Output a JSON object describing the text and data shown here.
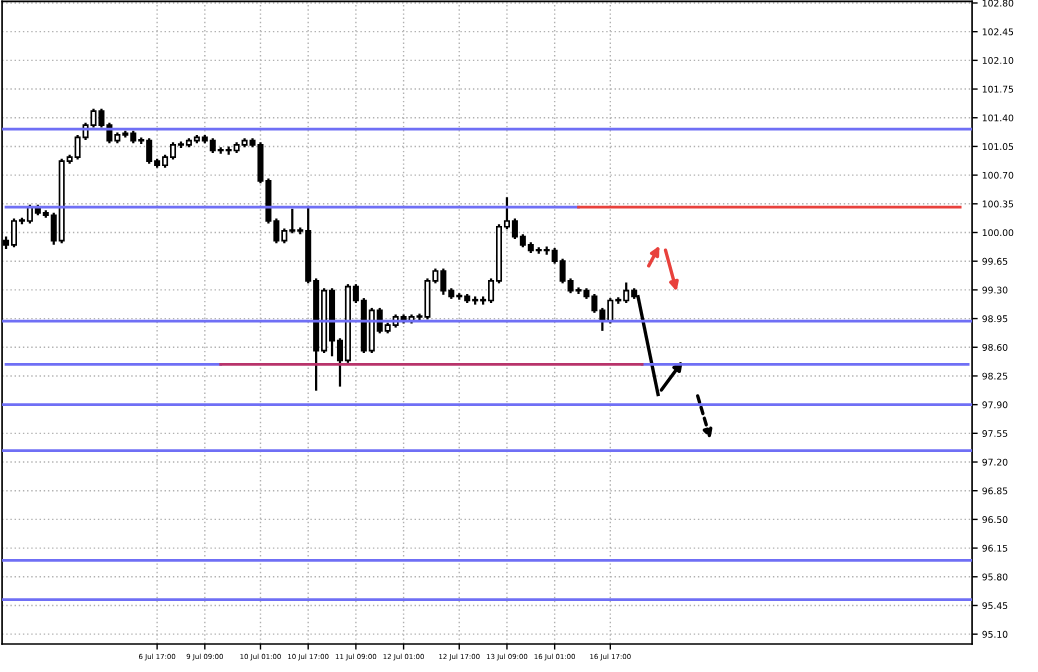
{
  "chart_data": {
    "type": "candlestick",
    "categories": [
      null,
      null,
      null,
      null,
      null,
      null,
      null,
      null,
      null,
      null,
      null,
      null,
      null,
      null,
      null,
      null,
      null,
      null,
      null,
      "6 Jul 17:00",
      null,
      null,
      null,
      null,
      null,
      "9 Jul 09:00",
      null,
      null,
      null,
      null,
      null,
      null,
      "10 Jul 01:00",
      null,
      null,
      null,
      null,
      null,
      "10 Jul 17:00",
      null,
      null,
      null,
      null,
      null,
      "11 Jul 09:00",
      null,
      null,
      null,
      null,
      null,
      "12 Jul 01:00",
      null,
      null,
      null,
      null,
      null,
      null,
      "12 Jul 17:00",
      null,
      null,
      null,
      null,
      null,
      "13 Jul 09:00",
      null,
      null,
      null,
      null,
      null,
      "16 Jul 01:00",
      null,
      null,
      null,
      null,
      null,
      null,
      "16 Jul 17:00",
      null,
      null,
      null,
      null,
      null,
      null,
      null,
      null,
      null,
      null,
      null,
      null,
      null,
      null,
      null,
      null,
      null,
      null,
      null,
      null,
      null,
      null,
      null,
      null,
      null,
      null,
      null,
      null,
      null,
      null,
      null,
      null,
      null,
      null,
      null,
      null,
      null,
      null,
      null,
      null,
      null,
      null,
      null,
      null,
      null
    ],
    "ohlc": [
      [
        99.9,
        99.95,
        99.8,
        99.85
      ],
      [
        99.85,
        100.17,
        99.82,
        100.14
      ],
      [
        100.14,
        100.18,
        100.1,
        100.14
      ],
      [
        100.14,
        100.34,
        100.11,
        100.31
      ],
      [
        100.31,
        100.34,
        100.21,
        100.24
      ],
      [
        100.24,
        100.27,
        100.18,
        100.21
      ],
      [
        100.21,
        100.24,
        99.85,
        99.9
      ],
      [
        99.9,
        100.9,
        99.87,
        100.87
      ],
      [
        100.87,
        100.95,
        100.84,
        100.92
      ],
      [
        100.92,
        101.19,
        100.89,
        101.16
      ],
      [
        101.16,
        101.34,
        101.13,
        101.31
      ],
      [
        101.31,
        101.51,
        101.28,
        101.48
      ],
      [
        101.48,
        101.51,
        101.28,
        101.31
      ],
      [
        101.31,
        101.34,
        101.09,
        101.12
      ],
      [
        101.12,
        101.22,
        101.09,
        101.19
      ],
      [
        101.19,
        101.24,
        101.16,
        101.21
      ],
      [
        101.21,
        101.24,
        101.09,
        101.12
      ],
      [
        101.12,
        101.16,
        101.08,
        101.12
      ],
      [
        101.12,
        101.15,
        100.84,
        100.87
      ],
      [
        100.87,
        100.9,
        100.79,
        100.82
      ],
      [
        100.82,
        100.95,
        100.79,
        100.92
      ],
      [
        100.92,
        101.1,
        100.89,
        101.07
      ],
      [
        101.07,
        101.11,
        101.03,
        101.07
      ],
      [
        101.07,
        101.15,
        101.04,
        101.12
      ],
      [
        101.12,
        101.19,
        101.09,
        101.16
      ],
      [
        101.16,
        101.19,
        101.09,
        101.12
      ],
      [
        101.12,
        101.15,
        100.97,
        101.0
      ],
      [
        101.0,
        101.04,
        100.96,
        101.0
      ],
      [
        101.0,
        101.05,
        100.95,
        101.0
      ],
      [
        101.0,
        101.1,
        100.97,
        101.07
      ],
      [
        101.07,
        101.15,
        101.04,
        101.12
      ],
      [
        101.12,
        101.15,
        101.04,
        101.07
      ],
      [
        101.07,
        101.1,
        100.6,
        100.63
      ],
      [
        100.63,
        100.66,
        100.11,
        100.14
      ],
      [
        100.14,
        100.17,
        99.87,
        99.9
      ],
      [
        99.9,
        100.05,
        99.87,
        100.02
      ],
      [
        100.02,
        100.29,
        99.99,
        100.02
      ],
      [
        100.02,
        100.06,
        99.98,
        100.02
      ],
      [
        100.02,
        100.31,
        99.38,
        99.41
      ],
      [
        99.41,
        99.44,
        98.07,
        98.56
      ],
      [
        98.56,
        99.32,
        98.53,
        99.29
      ],
      [
        99.29,
        99.32,
        98.49,
        98.68
      ],
      [
        98.68,
        98.71,
        98.12,
        98.44
      ],
      [
        98.44,
        99.37,
        98.41,
        99.34
      ],
      [
        99.34,
        99.37,
        99.14,
        99.17
      ],
      [
        99.17,
        99.2,
        98.53,
        98.56
      ],
      [
        98.56,
        99.08,
        98.53,
        99.05
      ],
      [
        99.05,
        99.08,
        98.77,
        98.8
      ],
      [
        98.8,
        98.9,
        98.77,
        98.87
      ],
      [
        98.87,
        99.0,
        98.84,
        98.97
      ],
      [
        98.97,
        99.0,
        98.89,
        98.92
      ],
      [
        98.92,
        99.0,
        98.89,
        98.97
      ],
      [
        98.97,
        99.01,
        98.93,
        98.97
      ],
      [
        98.97,
        99.44,
        98.94,
        99.41
      ],
      [
        99.41,
        99.56,
        99.38,
        99.53
      ],
      [
        99.53,
        99.56,
        99.24,
        99.29
      ],
      [
        99.29,
        99.32,
        99.19,
        99.22
      ],
      [
        99.22,
        99.26,
        99.18,
        99.22
      ],
      [
        99.22,
        99.25,
        99.14,
        99.17
      ],
      [
        99.17,
        99.22,
        99.12,
        99.17
      ],
      [
        99.17,
        99.22,
        99.12,
        99.17
      ],
      [
        99.17,
        99.44,
        99.14,
        99.41
      ],
      [
        99.41,
        100.1,
        99.38,
        100.07
      ],
      [
        100.07,
        100.43,
        100.04,
        100.14
      ],
      [
        100.14,
        100.17,
        99.92,
        99.95
      ],
      [
        99.95,
        99.98,
        99.82,
        99.85
      ],
      [
        99.85,
        99.88,
        99.75,
        99.78
      ],
      [
        99.78,
        99.82,
        99.74,
        99.78
      ],
      [
        99.78,
        99.83,
        99.73,
        99.78
      ],
      [
        99.78,
        99.81,
        99.62,
        99.65
      ],
      [
        99.65,
        99.68,
        99.38,
        99.41
      ],
      [
        99.41,
        99.44,
        99.26,
        99.29
      ],
      [
        99.29,
        99.33,
        99.25,
        99.29
      ],
      [
        99.29,
        99.32,
        99.19,
        99.22
      ],
      [
        99.22,
        99.25,
        99.02,
        99.05
      ],
      [
        99.05,
        99.08,
        98.8,
        98.92
      ],
      [
        98.92,
        99.2,
        98.89,
        99.17
      ],
      [
        99.17,
        99.21,
        99.13,
        99.17
      ],
      [
        99.17,
        99.39,
        99.14,
        99.29
      ],
      [
        99.29,
        99.32,
        99.19,
        99.22
      ],
      null,
      null,
      null,
      null,
      null,
      null,
      null,
      null,
      null,
      null,
      null,
      null,
      null,
      null,
      null,
      null,
      null,
      null,
      null,
      null,
      null,
      null,
      null,
      null,
      null,
      null,
      null,
      null,
      null,
      null,
      null,
      null,
      null,
      null,
      null,
      null,
      null,
      null,
      null,
      null,
      null,
      null
    ],
    "series": [
      {
        "type": "line",
        "color": "#6f6ff5",
        "values": [
          100.31,
          100.31,
          100.31,
          100.31,
          100.31,
          100.31,
          100.31,
          100.31,
          100.31,
          100.31,
          100.31,
          100.31,
          100.31,
          100.31,
          100.31,
          100.31,
          100.31,
          100.31,
          100.31,
          100.31,
          100.31,
          100.31,
          100.31,
          100.31,
          100.31,
          100.31,
          100.31,
          100.31,
          100.31,
          100.31,
          100.31,
          100.31,
          100.31,
          100.31,
          100.31,
          100.31,
          100.31,
          100.31,
          100.31,
          100.31,
          100.31,
          100.31,
          100.31,
          100.31,
          100.31,
          100.31,
          100.31,
          100.31,
          100.31,
          100.31,
          100.31,
          100.31,
          100.31,
          100.31,
          100.31,
          100.31,
          100.31,
          100.31,
          100.31,
          100.31,
          100.31,
          100.31,
          100.31,
          100.31,
          100.31,
          100.31,
          100.31,
          100.31,
          100.31,
          100.31,
          100.31,
          100.31,
          100.31,
          null,
          null,
          null,
          null,
          null,
          null,
          null,
          null,
          null,
          null,
          null,
          null,
          null,
          null,
          null,
          null,
          null,
          null,
          null,
          null,
          null,
          null,
          null,
          null,
          null,
          null,
          null,
          null,
          null,
          null,
          null,
          null,
          null,
          null,
          null,
          null,
          null,
          null,
          null,
          null,
          null,
          null,
          null,
          null,
          null,
          null,
          null,
          null,
          null
        ]
      },
      {
        "type": "line",
        "color": "#6f6ff5",
        "values": [
          98.39,
          98.39,
          98.39,
          98.39,
          98.39,
          98.39,
          98.39,
          98.39,
          98.39,
          98.39,
          98.39,
          98.39,
          98.39,
          98.39,
          98.39,
          98.39,
          98.39,
          98.39,
          98.39,
          98.39,
          98.39,
          98.39,
          98.39,
          98.39,
          98.39,
          98.39,
          98.39,
          98.39,
          null,
          null,
          null,
          null,
          null,
          null,
          null,
          null,
          null,
          null,
          null,
          null,
          null,
          null,
          null,
          null,
          null,
          null,
          null,
          null,
          null,
          null,
          null,
          null,
          null,
          null,
          null,
          null,
          null,
          null,
          null,
          null,
          null,
          null,
          null,
          null,
          null,
          null,
          null,
          null,
          null,
          null,
          null,
          null,
          null,
          null,
          null,
          null,
          null,
          null,
          null,
          null,
          null,
          null,
          null,
          null,
          null,
          null,
          null,
          null,
          null,
          null,
          null,
          null,
          null,
          null,
          null,
          null,
          null,
          null,
          null,
          null,
          null,
          null,
          null,
          null,
          null,
          null,
          null,
          null,
          null,
          null,
          null,
          null,
          null,
          null,
          null,
          null,
          null,
          null,
          null,
          null,
          null,
          null
        ]
      },
      {
        "type": "line",
        "color": "#6f6ff5",
        "values": [
          null,
          null,
          null,
          null,
          null,
          null,
          null,
          null,
          null,
          null,
          null,
          null,
          null,
          null,
          null,
          null,
          null,
          null,
          null,
          null,
          null,
          null,
          null,
          null,
          null,
          null,
          null,
          null,
          null,
          null,
          null,
          null,
          null,
          null,
          null,
          null,
          null,
          null,
          null,
          null,
          null,
          null,
          null,
          null,
          null,
          null,
          null,
          null,
          null,
          null,
          null,
          null,
          null,
          null,
          null,
          null,
          null,
          null,
          null,
          null,
          null,
          null,
          null,
          null,
          null,
          null,
          null,
          null,
          null,
          null,
          null,
          null,
          null,
          null,
          null,
          null,
          null,
          null,
          null,
          null,
          98.39,
          98.39,
          98.39,
          98.39,
          98.39,
          98.39,
          98.39,
          98.39,
          98.39,
          98.39,
          98.39,
          98.39,
          98.39,
          98.39,
          98.39,
          98.39,
          98.39,
          98.39,
          98.39,
          98.39,
          98.39,
          98.39,
          98.39,
          98.39,
          98.39,
          98.39,
          98.39,
          98.39,
          98.39,
          98.39,
          98.39,
          98.39,
          98.39,
          98.39,
          98.39,
          98.39,
          98.39,
          98.39,
          98.39,
          98.39,
          98.39,
          98.39
        ]
      },
      {
        "type": "line",
        "color": "#e8413c",
        "values": [
          null,
          null,
          null,
          null,
          null,
          null,
          null,
          null,
          null,
          null,
          null,
          null,
          null,
          null,
          null,
          null,
          null,
          null,
          null,
          null,
          null,
          null,
          null,
          null,
          null,
          null,
          null,
          null,
          null,
          null,
          null,
          null,
          null,
          null,
          null,
          null,
          null,
          null,
          null,
          null,
          null,
          null,
          null,
          null,
          null,
          null,
          null,
          null,
          null,
          null,
          null,
          null,
          null,
          null,
          null,
          null,
          null,
          null,
          null,
          null,
          null,
          null,
          null,
          null,
          null,
          null,
          null,
          null,
          null,
          null,
          null,
          null,
          100.31,
          100.31,
          100.31,
          100.31,
          100.31,
          100.31,
          100.31,
          100.31,
          100.31,
          100.31,
          100.31,
          100.31,
          100.31,
          100.31,
          100.31,
          100.31,
          100.31,
          100.31,
          100.31,
          100.31,
          100.31,
          100.31,
          100.31,
          100.31,
          100.31,
          100.31,
          100.31,
          100.31,
          100.31,
          100.31,
          100.31,
          100.31,
          100.31,
          100.31,
          100.31,
          100.31,
          100.31,
          100.31,
          100.31,
          100.31,
          100.31,
          100.31,
          100.31,
          100.31,
          100.31,
          100.31,
          100.31,
          100.31,
          100.31,
          null
        ]
      },
      {
        "type": "line",
        "color": "#b8336a",
        "values": [
          null,
          null,
          null,
          null,
          null,
          null,
          null,
          null,
          null,
          null,
          null,
          null,
          null,
          null,
          null,
          null,
          null,
          null,
          null,
          null,
          null,
          null,
          null,
          null,
          null,
          null,
          null,
          98.39,
          98.39,
          98.39,
          98.39,
          98.39,
          98.39,
          98.39,
          98.39,
          98.39,
          98.39,
          98.39,
          98.39,
          98.39,
          98.39,
          98.39,
          98.39,
          98.39,
          98.39,
          98.39,
          98.39,
          98.39,
          98.39,
          98.39,
          98.39,
          98.39,
          98.39,
          98.39,
          98.39,
          98.39,
          98.39,
          98.39,
          98.39,
          98.39,
          98.39,
          98.39,
          98.39,
          98.39,
          98.39,
          98.39,
          98.39,
          98.39,
          98.39,
          98.39,
          98.39,
          98.39,
          98.39,
          98.39,
          98.39,
          98.39,
          98.39,
          98.39,
          98.39,
          98.39,
          98.39,
          null,
          null,
          null,
          null,
          null,
          null,
          null,
          null,
          null,
          null,
          null,
          null,
          null,
          null,
          null,
          null,
          null,
          null,
          null,
          null,
          null,
          null,
          null,
          null,
          null,
          null,
          null,
          null,
          null,
          null,
          null,
          null,
          null,
          null,
          null,
          null,
          null,
          null,
          null,
          null,
          null
        ]
      }
    ],
    "ref_lines": [
      {
        "axis": "y",
        "value": 101.26,
        "color": "#6f6ff5"
      },
      {
        "axis": "y",
        "value": 98.92,
        "color": "#6f6ff5"
      },
      {
        "axis": "y",
        "value": 97.9,
        "color": "#6f6ff5"
      },
      {
        "axis": "y",
        "value": 97.34,
        "color": "#6f6ff5"
      },
      {
        "axis": "y",
        "value": 96.0,
        "color": "#6f6ff5"
      },
      {
        "axis": "y",
        "value": 95.52,
        "color": "#6f6ff5"
      }
    ],
    "ylim": [
      94.98,
      102.82
    ],
    "yticks": [
      {
        "value": 102.8,
        "label": "102.80"
      },
      {
        "value": 102.45,
        "label": "102.45"
      },
      {
        "value": 102.1,
        "label": "102.10"
      },
      {
        "value": 101.75,
        "label": "101.75"
      },
      {
        "value": 101.4,
        "label": "101.40"
      },
      {
        "value": 101.05,
        "label": "101.05"
      },
      {
        "value": 100.7,
        "label": "100.70"
      },
      {
        "value": 100.35,
        "label": "100.35"
      },
      {
        "value": 100.0,
        "label": "100.00"
      },
      {
        "value": 99.65,
        "label": "99.65"
      },
      {
        "value": 99.3,
        "label": "99.30"
      },
      {
        "value": 98.95,
        "label": "98.95"
      },
      {
        "value": 98.6,
        "label": "98.60"
      },
      {
        "value": 98.25,
        "label": "98.25"
      },
      {
        "value": 97.9,
        "label": "97.90"
      },
      {
        "value": 97.55,
        "label": "97.55"
      },
      {
        "value": 97.2,
        "label": "97.20"
      },
      {
        "value": 96.85,
        "label": "96.85"
      },
      {
        "value": 96.5,
        "label": "96.50"
      },
      {
        "value": 96.15,
        "label": "96.15"
      },
      {
        "value": 95.8,
        "label": "95.80"
      },
      {
        "value": 95.45,
        "label": "95.45"
      },
      {
        "value": 95.1,
        "label": "95.10"
      }
    ],
    "grid": true
  }
}
